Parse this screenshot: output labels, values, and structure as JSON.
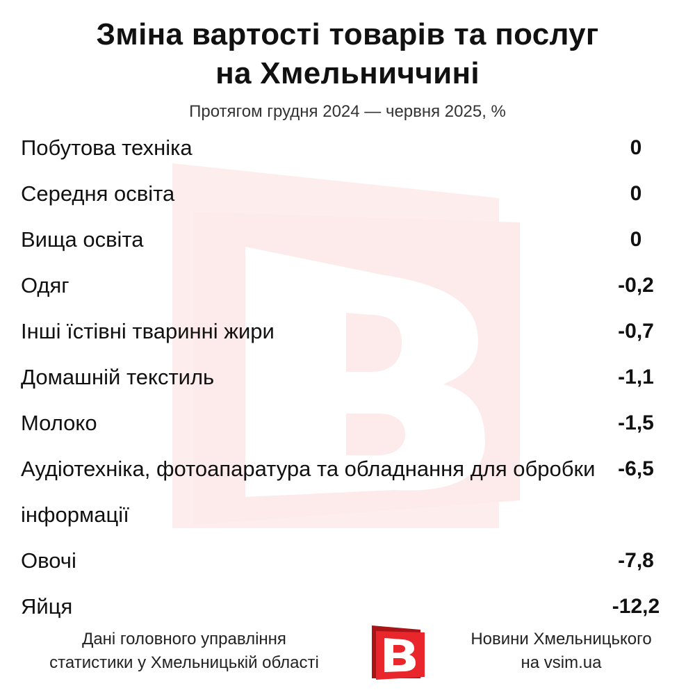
{
  "chart_data": {
    "type": "table",
    "title_lines": [
      "Зміна вартості товарів та послуг",
      "на Хмельниччині"
    ],
    "subtitle": "Протягом грудня 2024 — червня 2025, %",
    "categories": [
      "Побутова техніка",
      "Середня освіта",
      "Вища освіта",
      "Одяг",
      "Інші їстівні тваринні жири",
      "Домашній текстиль",
      "Молоко",
      "Аудіотехніка, фотоапаратура та обладнання для обробки інформації",
      "Овочі",
      "Яйця"
    ],
    "values": [
      "0",
      "0",
      "0",
      "-0,2",
      "-0,7",
      "-1,1",
      "-1,5",
      "-6,5",
      "-7,8",
      "-12,2"
    ]
  },
  "footer": {
    "source_lines": [
      "Дані головного управління",
      "статистики у Хмельницькій області"
    ],
    "brand_lines": [
      "Новини Хмельницького",
      "на vsim.ua"
    ]
  },
  "colors": {
    "logo_red": "#e8262b",
    "logo_dark_red": "#a81418",
    "watermark_red": "#fdeaea"
  },
  "icons": {
    "logo": "vsim-logo-B"
  }
}
